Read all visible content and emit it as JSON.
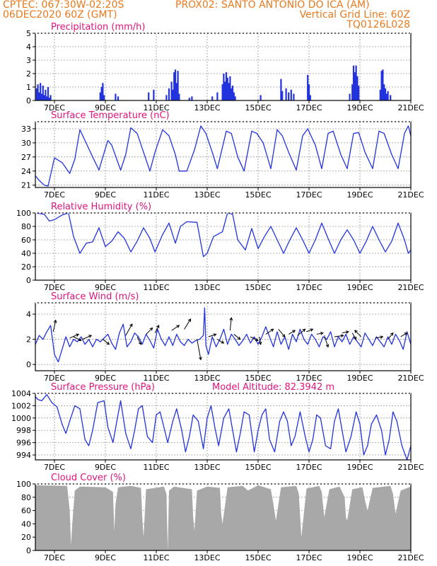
{
  "header": {
    "left1": "CPTEC:   067:30W-02:20S",
    "center": "PROX02: SANTO ANTONIO DO ICA (AM)",
    "left2": "06DEC2020 60Z (GMT)",
    "right1": "Vertical Grid Line: 60Z",
    "right2": "TQ0126L028"
  },
  "colors": {
    "header": "#e87a1e",
    "title": "#e0147c",
    "series": "#2233dd",
    "cloud": "#a8a8a8"
  },
  "x_tick_labels": [
    "7DEC",
    "9DEC",
    "11DEC",
    "13DEC",
    "15DEC",
    "17DEC",
    "19DEC",
    "21DEC"
  ],
  "chart_data": [
    {
      "id": "precip",
      "type": "bar",
      "title": "Precipitation (mm/h)",
      "ylim": [
        0,
        5
      ],
      "yticks": [
        0,
        1,
        2,
        3,
        4,
        5
      ],
      "x_range_days": [
        6.25,
        21
      ],
      "values": [
        [
          6.3,
          0.9
        ],
        [
          6.35,
          1.2
        ],
        [
          6.4,
          0.6
        ],
        [
          6.45,
          1.3
        ],
        [
          6.5,
          0.5
        ],
        [
          6.55,
          1.1
        ],
        [
          6.6,
          0.4
        ],
        [
          6.65,
          0.8
        ],
        [
          6.7,
          0.3
        ],
        [
          6.75,
          1.0
        ],
        [
          6.8,
          0.2
        ],
        [
          6.85,
          0.4
        ],
        [
          8.8,
          0.6
        ],
        [
          8.85,
          1.0
        ],
        [
          8.9,
          1.3
        ],
        [
          8.95,
          0.4
        ],
        [
          9.4,
          0.5
        ],
        [
          9.5,
          0.3
        ],
        [
          10.7,
          0.6
        ],
        [
          10.9,
          0.8
        ],
        [
          11.4,
          0.4
        ],
        [
          11.5,
          0.9
        ],
        [
          11.6,
          1.4
        ],
        [
          11.65,
          0.8
        ],
        [
          11.7,
          2.1
        ],
        [
          11.75,
          2.3
        ],
        [
          11.8,
          1.3
        ],
        [
          11.85,
          2.2
        ],
        [
          11.9,
          0.5
        ],
        [
          12.3,
          0.2
        ],
        [
          12.4,
          0.3
        ],
        [
          13.2,
          0.3
        ],
        [
          13.4,
          0.6
        ],
        [
          13.6,
          1.2
        ],
        [
          13.65,
          2.0
        ],
        [
          13.7,
          1.4
        ],
        [
          13.75,
          2.1
        ],
        [
          13.8,
          1.7
        ],
        [
          13.85,
          1.3
        ],
        [
          13.9,
          1.8
        ],
        [
          13.95,
          0.9
        ],
        [
          14.0,
          1.1
        ],
        [
          14.05,
          0.6
        ],
        [
          14.1,
          0.3
        ],
        [
          15.1,
          0.4
        ],
        [
          15.9,
          1.6
        ],
        [
          15.95,
          0.7
        ],
        [
          16.1,
          0.9
        ],
        [
          16.2,
          0.6
        ],
        [
          16.3,
          0.8
        ],
        [
          16.4,
          0.5
        ],
        [
          16.95,
          1.9
        ],
        [
          17.0,
          1.2
        ],
        [
          17.05,
          0.4
        ],
        [
          18.6,
          0.5
        ],
        [
          18.7,
          1.2
        ],
        [
          18.75,
          2.6
        ],
        [
          18.8,
          2.1
        ],
        [
          18.85,
          2.6
        ],
        [
          18.9,
          1.8
        ],
        [
          18.95,
          1.1
        ],
        [
          19.8,
          0.8
        ],
        [
          19.85,
          2.2
        ],
        [
          19.9,
          2.3
        ],
        [
          19.95,
          1.2
        ],
        [
          20.0,
          0.9
        ],
        [
          20.05,
          0.5
        ],
        [
          20.1,
          0.7
        ],
        [
          20.2,
          0.4
        ]
      ]
    },
    {
      "id": "temp",
      "type": "line",
      "title": "Surface Temperature (nC)",
      "ylim": [
        20.5,
        34.5
      ],
      "yticks": [
        21,
        24,
        27,
        30,
        33
      ],
      "x": [
        6.25,
        6.4,
        6.6,
        6.75,
        6.85,
        7.0,
        7.3,
        7.6,
        7.8,
        8.0,
        8.2,
        8.5,
        8.75,
        8.9,
        9.1,
        9.25,
        9.6,
        9.8,
        10.0,
        10.25,
        10.5,
        10.75,
        10.95,
        11.25,
        11.5,
        11.75,
        11.9,
        12.2,
        12.5,
        12.75,
        12.95,
        13.2,
        13.4,
        13.75,
        13.95,
        14.2,
        14.45,
        14.75,
        14.95,
        15.2,
        15.5,
        15.75,
        15.95,
        16.2,
        16.5,
        16.75,
        16.95,
        17.25,
        17.5,
        17.75,
        17.95,
        18.25,
        18.5,
        18.75,
        18.95,
        19.2,
        19.5,
        19.75,
        19.95,
        20.25,
        20.5,
        20.75,
        20.9,
        21.0
      ],
      "y": [
        23.0,
        22.0,
        21.0,
        20.8,
        23.2,
        26.8,
        25.8,
        23.5,
        26.5,
        32.8,
        30.5,
        27.0,
        24.2,
        27.0,
        30.5,
        29.5,
        24.2,
        27.5,
        33.2,
        32.0,
        28.0,
        24.0,
        28.0,
        32.8,
        31.5,
        27.5,
        24.0,
        24.0,
        28.5,
        33.6,
        32.0,
        28.0,
        24.5,
        32.5,
        32.0,
        27.0,
        24.0,
        32.5,
        32.0,
        30.0,
        24.5,
        32.8,
        31.5,
        28.0,
        24.2,
        31.5,
        33.0,
        29.5,
        24.5,
        32.0,
        32.5,
        27.5,
        24.5,
        32.0,
        32.2,
        28.0,
        24.5,
        32.5,
        32.0,
        27.5,
        24.5,
        32.0,
        33.6,
        31.5
      ]
    },
    {
      "id": "rh",
      "type": "line",
      "title": "Relative Humidity (%)",
      "ylim": [
        0,
        100
      ],
      "yticks": [
        0,
        20,
        40,
        60,
        80,
        100
      ],
      "x": [
        6.25,
        6.6,
        6.8,
        7.0,
        7.3,
        7.55,
        7.75,
        8.0,
        8.25,
        8.5,
        8.75,
        9.0,
        9.25,
        9.5,
        9.75,
        10.0,
        10.25,
        10.5,
        10.75,
        10.95,
        11.25,
        11.5,
        11.75,
        11.95,
        12.2,
        12.6,
        12.85,
        13.0,
        13.25,
        13.6,
        13.8,
        14.0,
        14.2,
        14.5,
        14.75,
        15.0,
        15.25,
        15.5,
        15.75,
        16.0,
        16.25,
        16.5,
        16.75,
        17.0,
        17.25,
        17.5,
        17.75,
        18.0,
        18.25,
        18.5,
        18.75,
        19.0,
        19.25,
        19.5,
        19.75,
        20.0,
        20.25,
        20.5,
        20.75,
        20.9,
        21.0
      ],
      "y": [
        100,
        98,
        88,
        90,
        97,
        100,
        65,
        40,
        55,
        57,
        78,
        50,
        58,
        72,
        62,
        42,
        58,
        78,
        62,
        42,
        68,
        85,
        55,
        80,
        87,
        86,
        35,
        40,
        65,
        72,
        100,
        98,
        60,
        45,
        77,
        47,
        65,
        80,
        60,
        40,
        60,
        78,
        60,
        40,
        60,
        85,
        62,
        40,
        60,
        75,
        60,
        40,
        58,
        80,
        60,
        42,
        58,
        85,
        60,
        40,
        45
      ]
    },
    {
      "id": "wind",
      "type": "line",
      "title": "Surface Wind (m/s)",
      "ylim": [
        -0.5,
        4.9
      ],
      "yticks": [
        0,
        2,
        4
      ],
      "x": [
        6.25,
        6.4,
        6.55,
        6.7,
        6.85,
        7.0,
        7.15,
        7.3,
        7.45,
        7.6,
        7.75,
        7.9,
        8.05,
        8.2,
        8.35,
        8.5,
        8.65,
        8.8,
        8.95,
        9.1,
        9.25,
        9.4,
        9.55,
        9.7,
        9.85,
        10.0,
        10.15,
        10.3,
        10.45,
        10.6,
        10.75,
        10.9,
        11.05,
        11.2,
        11.35,
        11.5,
        11.65,
        11.8,
        11.95,
        12.1,
        12.25,
        12.4,
        12.55,
        12.7,
        12.85,
        12.9,
        12.95,
        13.05,
        13.2,
        13.35,
        13.5,
        13.65,
        13.8,
        13.95,
        14.1,
        14.25,
        14.4,
        14.55,
        14.7,
        14.85,
        15.0,
        15.15,
        15.3,
        15.45,
        15.6,
        15.75,
        15.9,
        16.05,
        16.2,
        16.35,
        16.5,
        16.65,
        16.8,
        16.95,
        17.1,
        17.25,
        17.4,
        17.55,
        17.7,
        17.85,
        18.0,
        18.15,
        18.3,
        18.45,
        18.6,
        18.75,
        18.9,
        19.05,
        19.2,
        19.35,
        19.5,
        19.65,
        19.8,
        19.95,
        20.1,
        20.25,
        20.4,
        20.55,
        20.7,
        20.85,
        21.0
      ],
      "y": [
        1.6,
        2.3,
        2.0,
        2.6,
        3.1,
        0.8,
        0.2,
        1.2,
        2.2,
        1.4,
        2.0,
        1.8,
        2.2,
        1.6,
        2.0,
        1.4,
        2.0,
        1.8,
        2.1,
        2.4,
        1.7,
        1.2,
        2.5,
        3.2,
        1.4,
        1.8,
        2.5,
        2.2,
        1.6,
        2.4,
        1.9,
        1.3,
        2.8,
        2.0,
        1.5,
        2.2,
        1.5,
        2.4,
        1.8,
        1.5,
        2.0,
        1.7,
        1.9,
        2.0,
        2.3,
        4.5,
        1.5,
        0.8,
        2.2,
        1.4,
        2.0,
        2.8,
        1.6,
        2.4,
        2.0,
        1.5,
        1.9,
        2.4,
        1.7,
        2.2,
        1.6,
        2.2,
        3.0,
        2.2,
        1.4,
        2.6,
        1.6,
        2.2,
        1.2,
        2.4,
        1.8,
        2.8,
        2.0,
        1.6,
        2.4,
        2.0,
        1.4,
        2.2,
        2.0,
        2.6,
        1.4,
        2.2,
        1.8,
        2.4,
        1.6,
        2.2,
        1.8,
        1.4,
        2.5,
        2.0,
        1.5,
        2.2,
        1.8,
        1.4,
        2.2,
        1.6,
        2.4,
        1.9,
        1.2,
        2.6,
        1.6
      ],
      "arrows": [
        {
          "x": 6.95,
          "y": 2.6,
          "u": 0.2,
          "v": 0.9
        },
        {
          "x": 7.6,
          "y": 2.1,
          "u": 0.7,
          "v": 0.3
        },
        {
          "x": 7.75,
          "y": 2.2,
          "u": 0.6,
          "v": -0.3
        },
        {
          "x": 8.1,
          "y": 2.0,
          "u": 0.7,
          "v": 0.3
        },
        {
          "x": 8.9,
          "y": 2.0,
          "u": 0.5,
          "v": -0.4
        },
        {
          "x": 9.8,
          "y": 2.3,
          "u": 0.5,
          "v": 0.9
        },
        {
          "x": 10.25,
          "y": 2.2,
          "u": 0.3,
          "v": -0.6
        },
        {
          "x": 10.6,
          "y": 2.4,
          "u": 0.5,
          "v": 0.5
        },
        {
          "x": 10.95,
          "y": 2.5,
          "u": 0.3,
          "v": 0.6
        },
        {
          "x": 11.6,
          "y": 2.7,
          "u": 0.6,
          "v": 0.4
        },
        {
          "x": 12.1,
          "y": 2.8,
          "u": 0.5,
          "v": 0.8
        },
        {
          "x": 12.6,
          "y": 2.0,
          "u": 0.3,
          "v": -1.6
        },
        {
          "x": 13.05,
          "y": 2.2,
          "u": 0.6,
          "v": 0.2
        },
        {
          "x": 13.4,
          "y": 2.0,
          "u": 0.5,
          "v": -0.3
        },
        {
          "x": 13.9,
          "y": 2.7,
          "u": 0.1,
          "v": 1.0
        },
        {
          "x": 14.05,
          "y": 2.4,
          "u": 0.5,
          "v": -0.4
        },
        {
          "x": 14.7,
          "y": 2.2,
          "u": 0.6,
          "v": -0.3
        },
        {
          "x": 15.05,
          "y": 2.2,
          "u": 0.1,
          "v": -0.6
        },
        {
          "x": 15.3,
          "y": 2.4,
          "u": 0.6,
          "v": 0.4
        },
        {
          "x": 15.8,
          "y": 2.8,
          "u": 0.5,
          "v": -0.6
        },
        {
          "x": 16.2,
          "y": 2.4,
          "u": 0.5,
          "v": 0.3
        },
        {
          "x": 16.55,
          "y": 2.3,
          "u": 0.6,
          "v": 0.5
        },
        {
          "x": 16.9,
          "y": 2.6,
          "u": 0.5,
          "v": 0.2
        },
        {
          "x": 17.3,
          "y": 2.4,
          "u": 0.5,
          "v": 0.1
        },
        {
          "x": 17.6,
          "y": 2.3,
          "u": 0.3,
          "v": -0.9
        },
        {
          "x": 18.0,
          "y": 2.2,
          "u": 0.7,
          "v": 0.1
        },
        {
          "x": 18.3,
          "y": 2.5,
          "u": 0.5,
          "v": 0.1
        },
        {
          "x": 18.7,
          "y": 2.5,
          "u": 0.3,
          "v": -0.5
        },
        {
          "x": 19.05,
          "y": 2.2,
          "u": -0.5,
          "v": 0.5
        },
        {
          "x": 19.6,
          "y": 2.1,
          "u": 0.6,
          "v": 0.1
        },
        {
          "x": 20.1,
          "y": 2.0,
          "u": 0.4,
          "v": 0.5
        },
        {
          "x": 20.6,
          "y": 2.2,
          "u": 0.5,
          "v": 0.3
        }
      ]
    },
    {
      "id": "psfc",
      "type": "line",
      "title": "Surface Pressure (hPa)",
      "annotation": "Model Altitude: 82.3942 m",
      "ylim": [
        993.2,
        1004
      ],
      "yticks": [
        994,
        996,
        998,
        1000,
        1002,
        1004
      ],
      "x": [
        6.25,
        6.35,
        6.5,
        6.7,
        6.9,
        7.1,
        7.3,
        7.45,
        7.6,
        7.8,
        8.0,
        8.2,
        8.35,
        8.5,
        8.7,
        8.95,
        9.1,
        9.3,
        9.45,
        9.6,
        9.8,
        10.0,
        10.15,
        10.3,
        10.45,
        10.65,
        10.85,
        11.0,
        11.15,
        11.3,
        11.45,
        11.65,
        11.8,
        12.0,
        12.15,
        12.3,
        12.45,
        12.65,
        12.85,
        13.0,
        13.15,
        13.3,
        13.45,
        13.65,
        13.85,
        14.0,
        14.15,
        14.3,
        14.45,
        14.65,
        14.85,
        15.0,
        15.15,
        15.3,
        15.45,
        15.65,
        15.85,
        16.0,
        16.15,
        16.3,
        16.45,
        16.65,
        16.85,
        17.0,
        17.15,
        17.3,
        17.45,
        17.65,
        17.85,
        18.0,
        18.15,
        18.3,
        18.45,
        18.65,
        18.85,
        19.0,
        19.15,
        19.3,
        19.45,
        19.65,
        19.85,
        20.0,
        20.15,
        20.3,
        20.45,
        20.65,
        20.85,
        21.0
      ],
      "y": [
        1003.5,
        1003.0,
        1002.8,
        1003.8,
        1002.5,
        1001.8,
        999.0,
        997.5,
        999.5,
        1002.0,
        1001.5,
        996.5,
        995.5,
        998.0,
        1002.5,
        1002.8,
        998.5,
        996.0,
        999.5,
        1002.8,
        997.5,
        995.0,
        998.0,
        1001.5,
        1002.0,
        997.0,
        996.0,
        1000.5,
        1001.0,
        998.5,
        996.0,
        999.5,
        1001.5,
        998.0,
        994.5,
        997.0,
        1000.5,
        999.5,
        995.0,
        1000.0,
        1002.0,
        998.5,
        995.5,
        1000.0,
        1001.5,
        998.0,
        994.5,
        997.5,
        1001.0,
        1000.5,
        994.5,
        998.0,
        1000.5,
        1001.5,
        996.5,
        994.5,
        999.5,
        1001.0,
        999.5,
        995.5,
        997.0,
        1001.0,
        997.0,
        994.5,
        996.5,
        1000.5,
        1000.0,
        995.5,
        995.0,
        999.5,
        1001.5,
        998.0,
        994.5,
        997.0,
        1001.0,
        999.0,
        994.0,
        995.5,
        999.0,
        1000.5,
        998.0,
        994.0,
        996.5,
        1001.0,
        999.5,
        995.5,
        993.2,
        995.5
      ]
    },
    {
      "id": "cloud",
      "type": "area",
      "title": "Cloud Cover (%)",
      "ylim": [
        0,
        100
      ],
      "yticks": [
        0,
        20,
        40,
        60,
        80,
        100
      ],
      "x": [
        6.25,
        7.5,
        7.6,
        7.65,
        7.7,
        7.8,
        8.0,
        9.0,
        9.3,
        9.35,
        9.4,
        9.5,
        10.0,
        10.4,
        10.45,
        10.5,
        10.6,
        11.3,
        11.4,
        11.45,
        11.5,
        11.7,
        12.4,
        12.45,
        12.5,
        12.6,
        13.0,
        13.5,
        13.55,
        13.6,
        13.8,
        14.4,
        14.6,
        15.0,
        15.5,
        15.6,
        15.7,
        15.9,
        16.5,
        16.6,
        16.7,
        16.9,
        17.4,
        17.5,
        17.6,
        17.8,
        18.2,
        18.4,
        18.45,
        18.5,
        18.7,
        19.1,
        19.2,
        19.3,
        19.5,
        20.2,
        20.3,
        20.4,
        20.6,
        21.0
      ],
      "y": [
        98,
        97,
        60,
        8,
        40,
        90,
        96,
        95,
        88,
        30,
        70,
        95,
        97,
        94,
        50,
        20,
        92,
        96,
        85,
        0,
        90,
        96,
        92,
        50,
        30,
        90,
        96,
        94,
        55,
        40,
        95,
        97,
        90,
        98,
        92,
        70,
        45,
        95,
        97,
        85,
        20,
        93,
        97,
        88,
        50,
        92,
        96,
        80,
        50,
        45,
        92,
        95,
        75,
        60,
        94,
        97,
        85,
        55,
        90,
        96
      ]
    }
  ]
}
